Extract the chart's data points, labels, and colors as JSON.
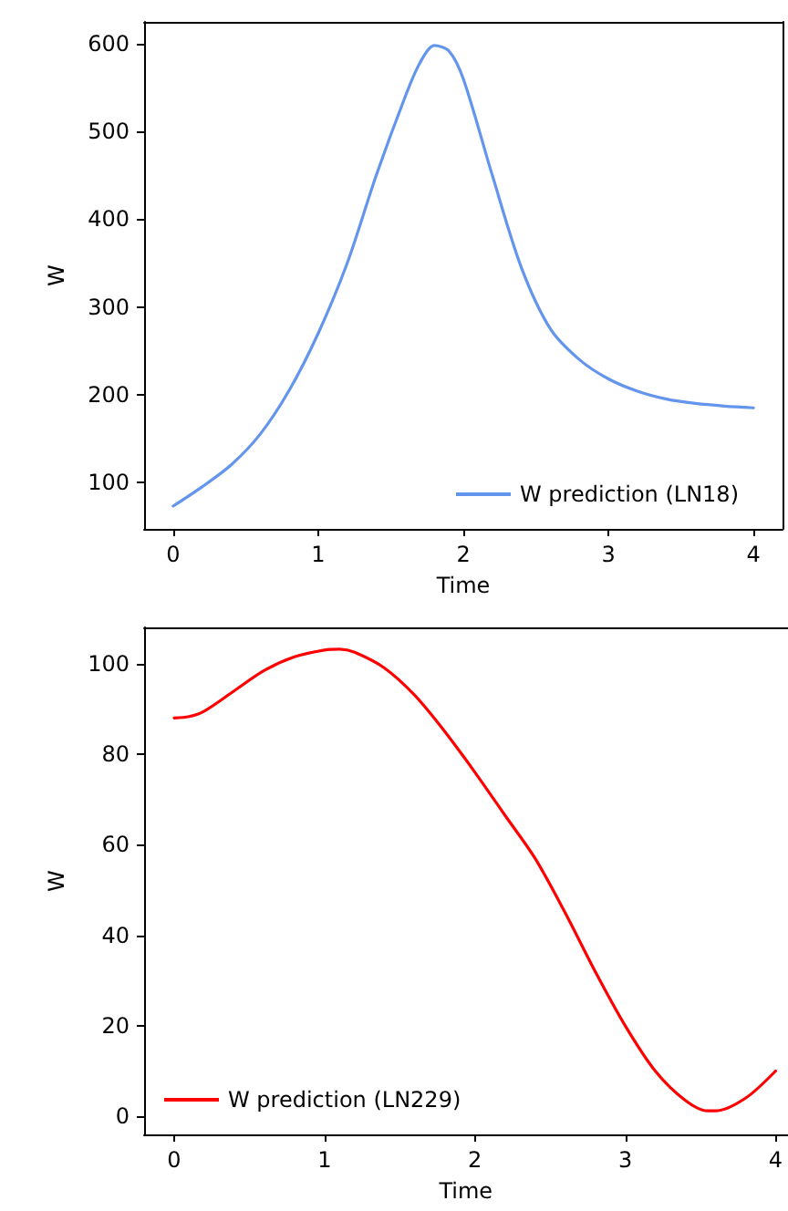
{
  "chart_data": [
    {
      "type": "line",
      "xlabel": "Time",
      "ylabel": "W",
      "legend": "bottom right",
      "grid": false,
      "marker": "none",
      "xlim": [
        -0.2,
        4.2
      ],
      "ylim": [
        47,
        625
      ],
      "xticks": [
        0,
        1,
        2,
        3,
        4
      ],
      "yticks": [
        100,
        200,
        300,
        400,
        500,
        600
      ],
      "x": [
        0,
        0.2,
        0.4,
        0.6,
        0.8,
        1.0,
        1.2,
        1.4,
        1.6,
        1.7,
        1.8,
        1.9,
        2.0,
        2.2,
        2.4,
        2.6,
        2.8,
        3.0,
        3.2,
        3.4,
        3.6,
        3.8,
        4.0
      ],
      "series": [
        {
          "name": "W prediction (LN18)",
          "color": "#6495ed",
          "values": [
            73,
            95,
            120,
            155,
            205,
            270,
            350,
            450,
            540,
            578,
            598,
            592,
            560,
            450,
            345,
            275,
            240,
            218,
            204,
            195,
            190,
            187,
            185
          ]
        }
      ]
    },
    {
      "type": "line",
      "xlabel": "Time",
      "ylabel": "W",
      "legend": "bottom left",
      "grid": false,
      "marker": "none",
      "xlim": [
        -0.2,
        4.08
      ],
      "ylim": [
        -4,
        108
      ],
      "xticks": [
        0,
        1,
        2,
        3,
        4
      ],
      "yticks": [
        0,
        20,
        40,
        60,
        80,
        100
      ],
      "x": [
        0,
        0.1,
        0.2,
        0.4,
        0.6,
        0.8,
        1.0,
        1.1,
        1.2,
        1.4,
        1.6,
        1.8,
        2.0,
        2.2,
        2.4,
        2.6,
        2.8,
        3.0,
        3.2,
        3.4,
        3.55,
        3.6,
        3.8,
        4.0
      ],
      "series": [
        {
          "name": "W prediction (LN229)",
          "color": "#ff0000",
          "values": [
            88,
            88.3,
            89.5,
            94,
            98.5,
            101.5,
            103,
            103.2,
            102.5,
            99,
            93,
            85,
            76,
            66.5,
            57,
            45,
            32,
            20,
            10,
            3.5,
            1.2,
            1.2,
            4,
            10
          ]
        }
      ]
    }
  ]
}
